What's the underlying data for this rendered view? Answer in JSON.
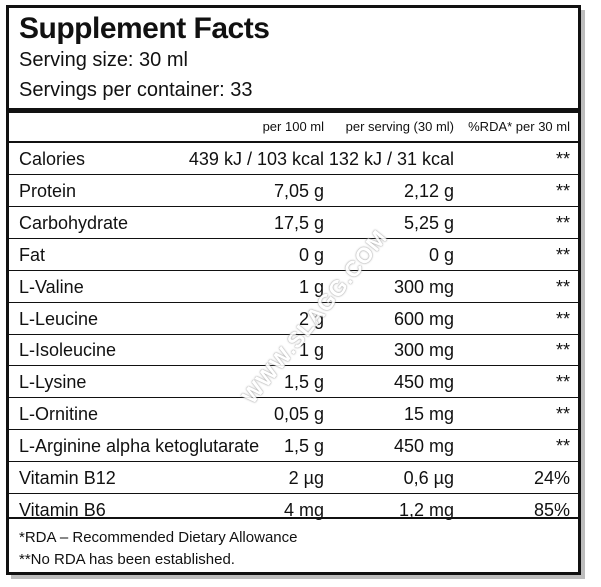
{
  "title": "Supplement Facts",
  "serving_size": "Serving size: 30 ml",
  "servings_per_container": "Servings per container: 33",
  "columns": {
    "per100": "per 100 ml",
    "perserving": "per serving (30 ml)",
    "rda": "%RDA* per 30 ml"
  },
  "rows": [
    {
      "name": "Calories",
      "per100": "439 kJ / 103 kcal",
      "perserving": "132 kJ / 31 kcal",
      "rda": "**"
    },
    {
      "name": "Protein",
      "per100": "7,05 g",
      "perserving": "2,12 g",
      "rda": "**"
    },
    {
      "name": "Carbohydrate",
      "per100": "17,5 g",
      "perserving": "5,25 g",
      "rda": "**"
    },
    {
      "name": "Fat",
      "per100": "0 g",
      "perserving": "0 g",
      "rda": "**"
    },
    {
      "name": "L-Valine",
      "per100": "1 g",
      "perserving": "300 mg",
      "rda": "**"
    },
    {
      "name": "L-Leucine",
      "per100": "2 g",
      "perserving": "600 mg",
      "rda": "**"
    },
    {
      "name": "L-Isoleucine",
      "per100": "1 g",
      "perserving": "300 mg",
      "rda": "**"
    },
    {
      "name": "L-Lysine",
      "per100": "1,5 g",
      "perserving": "450 mg",
      "rda": "**"
    },
    {
      "name": "L-Ornitine",
      "per100": "0,05 g",
      "perserving": "15 mg",
      "rda": "**"
    },
    {
      "name": "L-Arginine alpha ketoglutarate",
      "per100": "1,5 g",
      "perserving": "450 mg",
      "rda": "**"
    },
    {
      "name": "Vitamin B12",
      "per100": "2 µg",
      "perserving": "0,6 µg",
      "rda": "24%"
    },
    {
      "name": "Vitamin B6",
      "per100": "4 mg",
      "perserving": "1,2 mg",
      "rda": "85%"
    }
  ],
  "footnotes": {
    "rda": "*RDA – Recommended Dietary Allowance",
    "no_rda": "**No RDA has been established."
  },
  "watermark": "WWW.SLAGG.COM"
}
